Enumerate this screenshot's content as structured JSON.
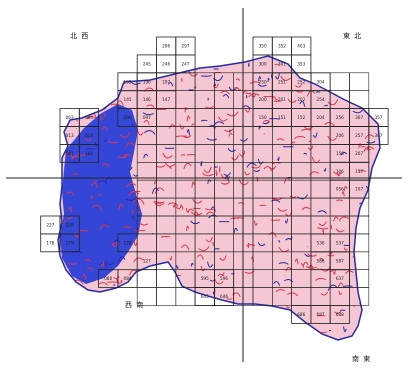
{
  "map": {
    "quadrant_labels": {
      "nw": "北 西",
      "ne": "東 北",
      "sw": "西 南",
      "se": "南 東"
    },
    "colors": {
      "land_fill": "#f4c7d2",
      "water_region": "#3346d8",
      "road_network": "#e0364e",
      "boundary": "#2a2aa8",
      "grid_line": "#222222"
    },
    "tiles": [
      {
        "id": "296",
        "r": 0,
        "c": 5
      },
      {
        "id": "297",
        "r": 0,
        "c": 6
      },
      {
        "id": "350",
        "r": 0,
        "c": 10
      },
      {
        "id": "352",
        "r": 0,
        "c": 11
      },
      {
        "id": "403",
        "r": 0,
        "c": 12
      },
      {
        "id": "245",
        "r": 1,
        "c": 4
      },
      {
        "id": "246",
        "r": 1,
        "c": 5
      },
      {
        "id": "247",
        "r": 1,
        "c": 6
      },
      {
        "id": "300",
        "r": 1,
        "c": 10
      },
      {
        "id": "301",
        "r": 1,
        "c": 11
      },
      {
        "id": "353",
        "r": 1,
        "c": 12
      },
      {
        "id": "195",
        "r": 2,
        "c": 3
      },
      {
        "id": "196",
        "r": 2,
        "c": 4
      },
      {
        "id": "197",
        "r": 2,
        "c": 5
      },
      {
        "id": "250",
        "r": 2,
        "c": 10
      },
      {
        "id": "251",
        "r": 2,
        "c": 11
      },
      {
        "id": "252",
        "r": 2,
        "c": 12
      },
      {
        "id": "304",
        "r": 2,
        "c": 13
      },
      {
        "id": "145",
        "r": 3,
        "c": 3
      },
      {
        "id": "146",
        "r": 3,
        "c": 4
      },
      {
        "id": "147",
        "r": 3,
        "c": 5
      },
      {
        "id": "200",
        "r": 3,
        "c": 10
      },
      {
        "id": "201",
        "r": 3,
        "c": 11
      },
      {
        "id": "202",
        "r": 3,
        "c": 12
      },
      {
        "id": "254",
        "r": 3,
        "c": 13
      },
      {
        "id": "063",
        "r": 4,
        "c": 0
      },
      {
        "id": "064",
        "r": 4,
        "c": 1
      },
      {
        "id": "096",
        "r": 4,
        "c": 3
      },
      {
        "id": "097",
        "r": 4,
        "c": 4
      },
      {
        "id": "150",
        "r": 4,
        "c": 10
      },
      {
        "id": "151",
        "r": 4,
        "c": 11
      },
      {
        "id": "152",
        "r": 4,
        "c": 12
      },
      {
        "id": "204",
        "r": 4,
        "c": 13
      },
      {
        "id": "256",
        "r": 4,
        "c": 14
      },
      {
        "id": "307",
        "r": 4,
        "c": 15
      },
      {
        "id": "357",
        "r": 4,
        "c": 16
      },
      {
        "id": "013",
        "r": 5,
        "c": 0
      },
      {
        "id": "014",
        "r": 5,
        "c": 1
      },
      {
        "id": "206",
        "r": 5,
        "c": 14
      },
      {
        "id": "257",
        "r": 5,
        "c": 15
      },
      {
        "id": "307",
        "r": 5,
        "c": 16
      },
      {
        "id": "501",
        "r": 6,
        "c": 0
      },
      {
        "id": "102",
        "r": 6,
        "c": 1
      },
      {
        "id": "156",
        "r": 6,
        "c": 14
      },
      {
        "id": "207",
        "r": 6,
        "c": 15
      },
      {
        "id": "106",
        "r": 7,
        "c": 14
      },
      {
        "id": "157",
        "r": 7,
        "c": 15
      },
      {
        "id": "056",
        "r": 8,
        "c": 14
      },
      {
        "id": "107",
        "r": 8,
        "c": 15
      },
      {
        "id": "227",
        "r": 10,
        "c": -1
      },
      {
        "id": "228",
        "r": 10,
        "c": 0
      },
      {
        "id": "178",
        "r": 11,
        "c": -1
      },
      {
        "id": "179",
        "r": 11,
        "c": 0
      },
      {
        "id": "128",
        "r": 11,
        "c": 3
      },
      {
        "id": "536",
        "r": 11,
        "c": 13
      },
      {
        "id": "537",
        "r": 11,
        "c": 14
      },
      {
        "id": "127",
        "r": 12,
        "c": 4
      },
      {
        "id": "586",
        "r": 12,
        "c": 13
      },
      {
        "id": "587",
        "r": 12,
        "c": 14
      },
      {
        "id": "080",
        "r": 13,
        "c": 2
      },
      {
        "id": "084",
        "r": 13,
        "c": 3
      },
      {
        "id": "595",
        "r": 13,
        "c": 7
      },
      {
        "id": "596",
        "r": 13,
        "c": 8
      },
      {
        "id": "637",
        "r": 13,
        "c": 14
      },
      {
        "id": "645",
        "r": 14,
        "c": 7
      },
      {
        "id": "646",
        "r": 14,
        "c": 8
      },
      {
        "id": "686",
        "r": 15,
        "c": 12
      },
      {
        "id": "687",
        "r": 15,
        "c": 13
      },
      {
        "id": "688",
        "r": 15,
        "c": 14
      }
    ]
  }
}
